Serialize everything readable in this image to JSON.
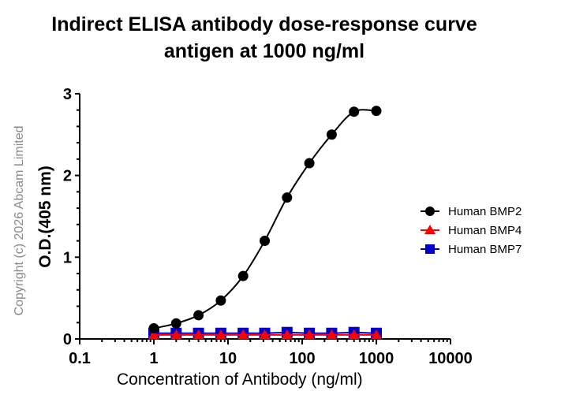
{
  "title_line1": "Indirect ELISA antibody dose-response curve",
  "title_line2": "antigen at 1000 ng/ml",
  "copyright": "Copyright (c) 2026 Abcam Limited",
  "chart_data": {
    "type": "line",
    "title": "Indirect ELISA antibody dose-response curve antigen at 1000 ng/ml",
    "xlabel": "Concentration of Antibody (ng/ml)",
    "ylabel": "O.D.(405 nm)",
    "xscale": "log",
    "xlim": [
      0.1,
      10000
    ],
    "ylim": [
      0,
      3
    ],
    "xticks": [
      "0.1",
      "1",
      "10",
      "100",
      "1000",
      "10000"
    ],
    "yticks": [
      "0",
      "1",
      "2",
      "3"
    ],
    "grid": false,
    "legend_position": "right",
    "x": [
      1,
      2,
      4,
      8,
      16,
      31.25,
      62.5,
      125,
      250,
      500,
      1000
    ],
    "series": [
      {
        "name": "Human BMP2",
        "color": "#000000",
        "marker": "circle",
        "fit": "sigmoidal",
        "values": [
          0.13,
          0.19,
          0.29,
          0.47,
          0.77,
          1.2,
          1.73,
          2.15,
          2.5,
          2.78,
          2.79
        ]
      },
      {
        "name": "Human BMP4",
        "color": "#ff0000",
        "marker": "triangle",
        "values": [
          0.05,
          0.05,
          0.05,
          0.05,
          0.05,
          0.05,
          0.05,
          0.05,
          0.05,
          0.05,
          0.05
        ]
      },
      {
        "name": "Human BMP7",
        "color": "#0000cc",
        "marker": "square",
        "values": [
          0.07,
          0.07,
          0.07,
          0.07,
          0.07,
          0.07,
          0.08,
          0.07,
          0.07,
          0.08,
          0.07
        ]
      }
    ]
  }
}
